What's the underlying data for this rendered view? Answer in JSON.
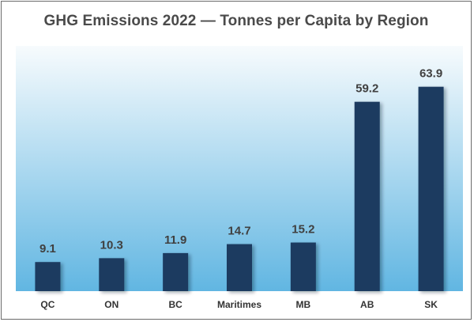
{
  "chart_data": {
    "type": "bar",
    "title": "GHG Emissions 2022 — Tonnes per Capita by Region",
    "categories": [
      "QC",
      "ON",
      "BC",
      "Maritimes",
      "MB",
      "AB",
      "SK"
    ],
    "values": [
      9.1,
      10.3,
      11.9,
      14.7,
      15.2,
      59.2,
      63.9
    ],
    "data_labels": [
      "9.1",
      "10.3",
      "11.9",
      "14.7",
      "15.2",
      "59.2",
      "63.9"
    ],
    "xlabel": "",
    "ylabel": "",
    "ylim": [
      0,
      70
    ],
    "grid": false,
    "legend": "none"
  },
  "colors": {
    "bar": "#1b3a60",
    "plot_top": "#f7fbfd",
    "plot_bottom": "#61b6e2",
    "title": "#4a4a4a"
  }
}
